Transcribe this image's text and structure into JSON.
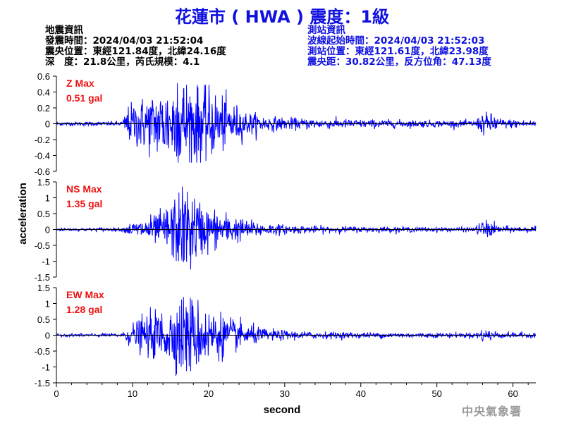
{
  "header": {
    "title": "花蓮市 ( HWA ) 震度：1級",
    "quake_heading": "地震資訊",
    "quake_time": "發震時間：2024/04/03 21:52:04",
    "epicenter": "震央位置：東經121.84度，北緯24.16度",
    "depth_magnitude": "深　度：21.8公里，芮氏規模：4.1",
    "station_heading": "測站資訊",
    "wave_start": "波線起始時間：2024/04/03 21:52:03",
    "station_position": "測站位置：東經121.61度，北緯23.98度",
    "distance_azimuth": "震央距：30.82公里，反方位角：47.13度"
  },
  "watermark": "中央氣象署",
  "colors": {
    "trace": "#0000ff",
    "label": "#ee1111",
    "title": "#1010e0"
  },
  "chart_data": {
    "type": "line",
    "xlabel": "second",
    "ylabel": "acceleration",
    "xlim": [
      0,
      63
    ],
    "xticks": [
      0,
      10,
      20,
      30,
      40,
      50,
      60
    ],
    "xtick_labels": [
      "0",
      "10",
      "20",
      "30",
      "40",
      "50",
      "60"
    ],
    "grid": false,
    "sample_interval_s": 0.05,
    "panels": [
      {
        "name": "Z Max",
        "max_label": "0.51 gal",
        "peak_abs": 0.51,
        "ylim": [
          -0.6,
          0.6
        ],
        "yticks": [
          0.6,
          0.4,
          0.2,
          0,
          -0.2,
          -0.4,
          -0.6
        ],
        "ytick_labels": [
          "0.6",
          "0.4",
          "0.2",
          "0",
          "-0.2",
          "-0.4",
          "-0.6"
        ],
        "envelope": [
          [
            0,
            0.015
          ],
          [
            8.7,
            0.02
          ],
          [
            9.3,
            0.14
          ],
          [
            10.5,
            0.2
          ],
          [
            12,
            0.24
          ],
          [
            14,
            0.3
          ],
          [
            16,
            0.4
          ],
          [
            17.5,
            0.4
          ],
          [
            19,
            0.34
          ],
          [
            21,
            0.26
          ],
          [
            23,
            0.18
          ],
          [
            25,
            0.1
          ],
          [
            28,
            0.06
          ],
          [
            32,
            0.045
          ],
          [
            40,
            0.035
          ],
          [
            50,
            0.028
          ],
          [
            55,
            0.026
          ],
          [
            56,
            0.09
          ],
          [
            57.5,
            0.08
          ],
          [
            58.5,
            0.04
          ],
          [
            63,
            0.03
          ]
        ]
      },
      {
        "name": "NS Max",
        "max_label": "1.35 gal",
        "peak_abs": 1.35,
        "ylim": [
          -1.5,
          1.5
        ],
        "yticks": [
          1.5,
          1,
          0.5,
          0,
          -0.5,
          -1,
          -1.5
        ],
        "ytick_labels": [
          "1.5",
          "1",
          "0.5",
          "0",
          "-0.5",
          "-1",
          "-1.5"
        ],
        "envelope": [
          [
            0,
            0.03
          ],
          [
            8.7,
            0.04
          ],
          [
            9.5,
            0.12
          ],
          [
            11,
            0.2
          ],
          [
            13,
            0.3
          ],
          [
            15,
            0.55
          ],
          [
            16.5,
            0.9
          ],
          [
            17.5,
            0.9
          ],
          [
            19,
            0.55
          ],
          [
            21,
            0.4
          ],
          [
            23,
            0.3
          ],
          [
            25,
            0.2
          ],
          [
            28,
            0.12
          ],
          [
            32,
            0.08
          ],
          [
            40,
            0.06
          ],
          [
            50,
            0.05
          ],
          [
            55,
            0.05
          ],
          [
            56,
            0.2
          ],
          [
            57.3,
            0.15
          ],
          [
            58.5,
            0.07
          ],
          [
            63,
            0.06
          ]
        ]
      },
      {
        "name": "EW Max",
        "max_label": "1.28 gal",
        "peak_abs": 1.28,
        "ylim": [
          -1.5,
          1.5
        ],
        "yticks": [
          1.5,
          1,
          0.5,
          0,
          -0.5,
          -1,
          -1.5
        ],
        "ytick_labels": [
          "1.5",
          "1",
          "0.5",
          "0",
          "-0.5",
          "-1",
          "-1.5"
        ],
        "envelope": [
          [
            0,
            0.03
          ],
          [
            8.7,
            0.04
          ],
          [
            9.5,
            0.2
          ],
          [
            11,
            0.35
          ],
          [
            13,
            0.5
          ],
          [
            15,
            0.6
          ],
          [
            16.5,
            0.85
          ],
          [
            17.5,
            0.85
          ],
          [
            19,
            0.65
          ],
          [
            21,
            0.5
          ],
          [
            23,
            0.35
          ],
          [
            25,
            0.22
          ],
          [
            28,
            0.12
          ],
          [
            32,
            0.08
          ],
          [
            40,
            0.06
          ],
          [
            50,
            0.05
          ],
          [
            55,
            0.05
          ],
          [
            56,
            0.14
          ],
          [
            57.3,
            0.11
          ],
          [
            58.5,
            0.06
          ],
          [
            63,
            0.05
          ]
        ]
      }
    ]
  }
}
